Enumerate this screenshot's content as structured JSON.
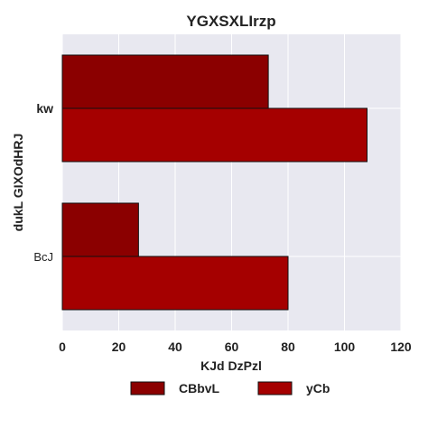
{
  "chart_data": {
    "type": "bar",
    "orientation": "horizontal",
    "title": "YGXSXLIrzp",
    "xlabel": "KJd DzPzl",
    "ylabel": "dukL GIXOdHRJ",
    "categories": [
      "kw",
      "BcJ"
    ],
    "series": [
      {
        "name": "CBbvL",
        "values": [
          73,
          27
        ],
        "color": "#8b0000"
      },
      {
        "name": "yCb",
        "values": [
          108,
          80
        ],
        "color": "#a50000"
      }
    ],
    "xlim": [
      0,
      120
    ],
    "xticks": [
      0,
      20,
      40,
      60,
      80,
      100,
      120
    ],
    "grid": true,
    "legend_position": "bottom-center"
  },
  "colors": {
    "plot_background": "#e8e8f0",
    "grid": "#ffffff",
    "bar_edge": "#111111"
  }
}
